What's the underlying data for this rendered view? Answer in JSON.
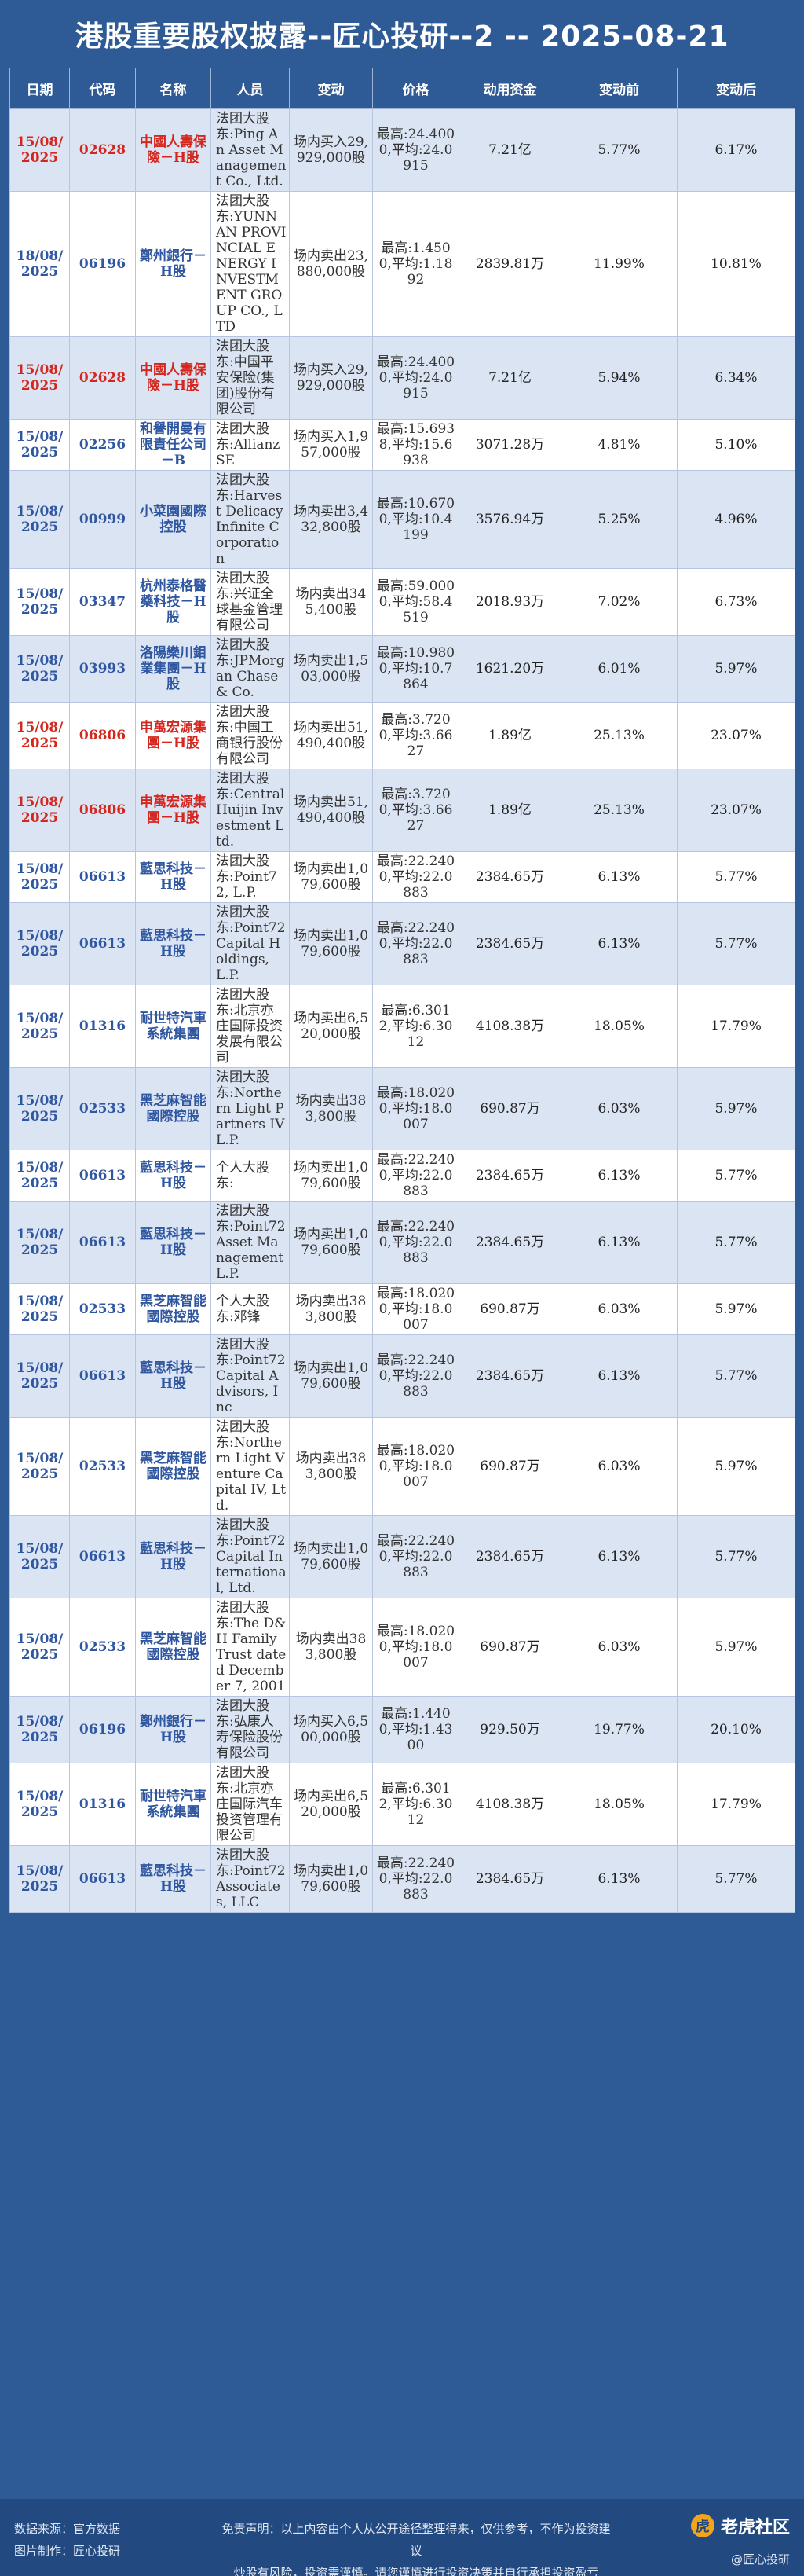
{
  "title": "港股重要股权披露--匠心投研--2 -- 2025-08-21",
  "columns": [
    "日期",
    "代码",
    "名称",
    "人员",
    "变动",
    "价格",
    "动用资金",
    "变动前",
    "变动后"
  ],
  "rows": [
    {
      "date": "15/08/2025",
      "code": "02628",
      "name": "中國人壽保險－H股",
      "person": "法团大股东:Ping An Asset Management Co., Ltd.",
      "action": "场内买入29,929,000股",
      "price": "最高:24.4000,平均:24.0915",
      "funds": "7.21亿",
      "before": "5.77%",
      "after": "6.17%",
      "hl": true
    },
    {
      "date": "18/08/2025",
      "code": "06196",
      "name": "鄭州銀行－H股",
      "person": "法团大股东:YUNNAN PROVINCIAL ENERGY INVESTMENT GROUP CO., LTD",
      "action": "场内卖出23,880,000股",
      "price": "最高:1.4500,平均:1.1892",
      "funds": "2839.81万",
      "before": "11.99%",
      "after": "10.81%",
      "hl": false
    },
    {
      "date": "15/08/2025",
      "code": "02628",
      "name": "中國人壽保險－H股",
      "person": "法团大股东:中国平安保险(集团)股份有限公司",
      "action": "场内买入29,929,000股",
      "price": "最高:24.4000,平均:24.0915",
      "funds": "7.21亿",
      "before": "5.94%",
      "after": "6.34%",
      "hl": true
    },
    {
      "date": "15/08/2025",
      "code": "02256",
      "name": "和譽開曼有限責任公司－B",
      "person": "法团大股东:Allianz SE",
      "action": "场内买入1,957,000股",
      "price": "最高:15.6938,平均:15.6938",
      "funds": "3071.28万",
      "before": "4.81%",
      "after": "5.10%",
      "hl": false
    },
    {
      "date": "15/08/2025",
      "code": "00999",
      "name": "小菜園國際控股",
      "person": "法团大股东:Harvest Delicacy Infinite Corporation",
      "action": "场内卖出3,432,800股",
      "price": "最高:10.6700,平均:10.4199",
      "funds": "3576.94万",
      "before": "5.25%",
      "after": "4.96%",
      "hl": false
    },
    {
      "date": "15/08/2025",
      "code": "03347",
      "name": "杭州泰格醫藥科技－H股",
      "person": "法团大股东:兴证全球基金管理有限公司",
      "action": "场内卖出345,400股",
      "price": "最高:59.0000,平均:58.4519",
      "funds": "2018.93万",
      "before": "7.02%",
      "after": "6.73%",
      "hl": false
    },
    {
      "date": "15/08/2025",
      "code": "03993",
      "name": "洛陽欒川鉬業集團－H股",
      "person": "法团大股东:JPMorgan Chase & Co.",
      "action": "场内卖出1,503,000股",
      "price": "最高:10.9800,平均:10.7864",
      "funds": "1621.20万",
      "before": "6.01%",
      "after": "5.97%",
      "hl": false
    },
    {
      "date": "15/08/2025",
      "code": "06806",
      "name": "申萬宏源集團－H股",
      "person": "法团大股东:中国工商银行股份有限公司",
      "action": "场内卖出51,490,400股",
      "price": "最高:3.7200,平均:3.6627",
      "funds": "1.89亿",
      "before": "25.13%",
      "after": "23.07%",
      "hl": true
    },
    {
      "date": "15/08/2025",
      "code": "06806",
      "name": "申萬宏源集團－H股",
      "person": "法团大股东:Central Huijin Investment Ltd.",
      "action": "场内卖出51,490,400股",
      "price": "最高:3.7200,平均:3.6627",
      "funds": "1.89亿",
      "before": "25.13%",
      "after": "23.07%",
      "hl": true
    },
    {
      "date": "15/08/2025",
      "code": "06613",
      "name": "藍思科技－H股",
      "person": "法团大股东:Point72, L.P.",
      "action": "场内卖出1,079,600股",
      "price": "最高:22.2400,平均:22.0883",
      "funds": "2384.65万",
      "before": "6.13%",
      "after": "5.77%",
      "hl": false
    },
    {
      "date": "15/08/2025",
      "code": "06613",
      "name": "藍思科技－H股",
      "person": "法团大股东:Point72 Capital Holdings, L.P.",
      "action": "场内卖出1,079,600股",
      "price": "最高:22.2400,平均:22.0883",
      "funds": "2384.65万",
      "before": "6.13%",
      "after": "5.77%",
      "hl": false
    },
    {
      "date": "15/08/2025",
      "code": "01316",
      "name": "耐世特汽車系統集團",
      "person": "法团大股东:北京亦庄国际投资发展有限公司",
      "action": "场内卖出6,520,000股",
      "price": "最高:6.3012,平均:6.3012",
      "funds": "4108.38万",
      "before": "18.05%",
      "after": "17.79%",
      "hl": false
    },
    {
      "date": "15/08/2025",
      "code": "02533",
      "name": "黑芝麻智能國際控股",
      "person": "法团大股东:Northern Light Partners IV L.P.",
      "action": "场内卖出383,800股",
      "price": "最高:18.0200,平均:18.0007",
      "funds": "690.87万",
      "before": "6.03%",
      "after": "5.97%",
      "hl": false
    },
    {
      "date": "15/08/2025",
      "code": "06613",
      "name": "藍思科技－H股",
      "person": "个人大股东:",
      "action": "场内卖出1,079,600股",
      "price": "最高:22.2400,平均:22.0883",
      "funds": "2384.65万",
      "before": "6.13%",
      "after": "5.77%",
      "hl": false
    },
    {
      "date": "15/08/2025",
      "code": "06613",
      "name": "藍思科技－H股",
      "person": "法团大股东:Point72 Asset Management L.P.",
      "action": "场内卖出1,079,600股",
      "price": "最高:22.2400,平均:22.0883",
      "funds": "2384.65万",
      "before": "6.13%",
      "after": "5.77%",
      "hl": false
    },
    {
      "date": "15/08/2025",
      "code": "02533",
      "name": "黑芝麻智能國際控股",
      "person": "个人大股东:邓锋",
      "action": "场内卖出383,800股",
      "price": "最高:18.0200,平均:18.0007",
      "funds": "690.87万",
      "before": "6.03%",
      "after": "5.97%",
      "hl": false
    },
    {
      "date": "15/08/2025",
      "code": "06613",
      "name": "藍思科技－H股",
      "person": "法团大股东:Point72 Capital Advisors, Inc",
      "action": "场内卖出1,079,600股",
      "price": "最高:22.2400,平均:22.0883",
      "funds": "2384.65万",
      "before": "6.13%",
      "after": "5.77%",
      "hl": false
    },
    {
      "date": "15/08/2025",
      "code": "02533",
      "name": "黑芝麻智能國際控股",
      "person": "法团大股东:Northern Light Venture Capital IV, Ltd.",
      "action": "场内卖出383,800股",
      "price": "最高:18.0200,平均:18.0007",
      "funds": "690.87万",
      "before": "6.03%",
      "after": "5.97%",
      "hl": false
    },
    {
      "date": "15/08/2025",
      "code": "06613",
      "name": "藍思科技－H股",
      "person": "法团大股东:Point72 Capital International, Ltd.",
      "action": "场内卖出1,079,600股",
      "price": "最高:22.2400,平均:22.0883",
      "funds": "2384.65万",
      "before": "6.13%",
      "after": "5.77%",
      "hl": false
    },
    {
      "date": "15/08/2025",
      "code": "02533",
      "name": "黑芝麻智能國際控股",
      "person": "法团大股东:The D&H Family Trust dated December 7, 2001",
      "action": "场内卖出383,800股",
      "price": "最高:18.0200,平均:18.0007",
      "funds": "690.87万",
      "before": "6.03%",
      "after": "5.97%",
      "hl": false
    },
    {
      "date": "15/08/2025",
      "code": "06196",
      "name": "鄭州銀行－H股",
      "person": "法团大股东:弘康人寿保险股份有限公司",
      "action": "场内买入6,500,000股",
      "price": "最高:1.4400,平均:1.4300",
      "funds": "929.50万",
      "before": "19.77%",
      "after": "20.10%",
      "hl": false
    },
    {
      "date": "15/08/2025",
      "code": "01316",
      "name": "耐世特汽車系統集團",
      "person": "法团大股东:北京亦庄国际汽车投资管理有限公司",
      "action": "场内卖出6,520,000股",
      "price": "最高:6.3012,平均:6.3012",
      "funds": "4108.38万",
      "before": "18.05%",
      "after": "17.79%",
      "hl": false
    },
    {
      "date": "15/08/2025",
      "code": "06613",
      "name": "藍思科技－H股",
      "person": "法团大股东:Point72 Associates, LLC",
      "action": "场内卖出1,079,600股",
      "price": "最高:22.2400,平均:22.0883",
      "funds": "2384.65万",
      "before": "6.13%",
      "after": "5.77%",
      "hl": false
    }
  ],
  "footer": {
    "source": "数据来源：官方数据",
    "maker": "图片制作：匠心投研",
    "disclaimer1": "免责声明：以上内容由个人从公开途径整理得来，仅供参考，不作为投资建议",
    "disclaimer2": "炒股有风险，投资需谨慎。请您谨慎进行投资决策并自行承担投资盈亏",
    "brand": "老虎社区",
    "handle": "@匠心投研"
  },
  "colors": {
    "header_bg": "#2e5b96",
    "row_alt": "#dbe4f3",
    "highlight_red": "#d5261e",
    "name_blue": "#2f56a0"
  }
}
